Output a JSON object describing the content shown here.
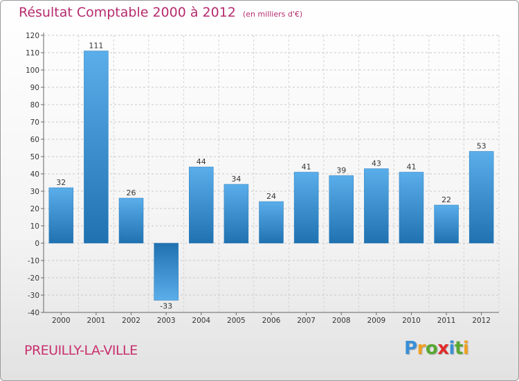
{
  "header": {
    "title": "Résultat Comptable 2000 à 2012",
    "subtitle": "(en milliers d'€)"
  },
  "footer": {
    "commune": "PREUILLY-LA-VILLE",
    "logo": [
      "P",
      "r",
      "o",
      "x",
      "i",
      "t",
      "i"
    ],
    "logo_colors": [
      "#3a8fd6",
      "#f0a020",
      "#58a832",
      "#e02a2a",
      "#3a8fd6",
      "#58a832",
      "#f0a020"
    ]
  },
  "chart_data": {
    "type": "bar",
    "title": "Résultat Comptable 2000 à 2012",
    "subtitle": "(en milliers d'€)",
    "categories": [
      "2000",
      "2001",
      "2002",
      "2003",
      "2004",
      "2005",
      "2006",
      "2007",
      "2008",
      "2009",
      "2010",
      "2011",
      "2012"
    ],
    "values": [
      32,
      111,
      26,
      -33,
      44,
      34,
      24,
      41,
      39,
      43,
      41,
      22,
      53
    ],
    "ylim": [
      -40,
      120
    ],
    "yticks": [
      -40,
      -30,
      -20,
      -10,
      0,
      10,
      20,
      30,
      40,
      50,
      60,
      70,
      80,
      90,
      100,
      110,
      120
    ],
    "grid": true,
    "bar_color": "#3a93d8",
    "bar_color_dark": "#1f72b3"
  }
}
